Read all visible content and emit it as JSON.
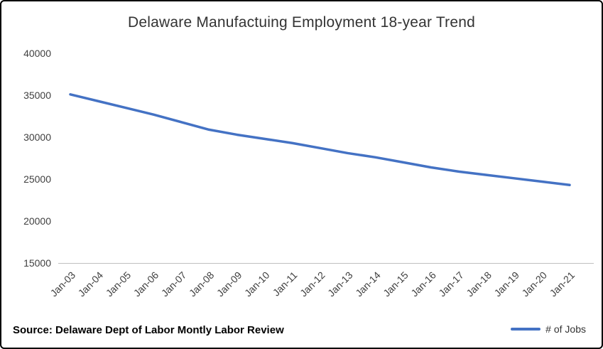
{
  "chart_data": {
    "type": "line",
    "title": "Delaware Manufactuing Employment 18-year Trend",
    "categories": [
      "Jan-03",
      "Jan-04",
      "Jan-05",
      "Jan-06",
      "Jan-07",
      "Jan-08",
      "Jan-09",
      "Jan-10",
      "Jan-11",
      "Jan-12",
      "Jan-13",
      "Jan-14",
      "Jan-15",
      "Jan-16",
      "Jan-17",
      "Jan-18",
      "Jan-19",
      "Jan-20",
      "Jan-21"
    ],
    "series": [
      {
        "name": "# of Jobs",
        "values": [
          35100,
          34300,
          33500,
          32700,
          31800,
          30900,
          30300,
          29800,
          29300,
          28700,
          28100,
          27600,
          27000,
          26400,
          25900,
          25500,
          25100,
          24700,
          24300
        ]
      }
    ],
    "xlabel": "",
    "ylabel": "",
    "ylim": [
      15000,
      40000
    ],
    "ytick_step": 5000,
    "ytick_labels": [
      "15000",
      "20000",
      "25000",
      "30000",
      "35000",
      "40000"
    ],
    "grid": false,
    "legend_position": "bottom-right",
    "line_color": "#4472C4",
    "axis_line_color": "#bfbfbf",
    "tick_label_color": "#404040"
  },
  "footer": {
    "source": "Source: Delaware Dept of Labor Montly Labor Review",
    "legend_label": "# of Jobs"
  }
}
